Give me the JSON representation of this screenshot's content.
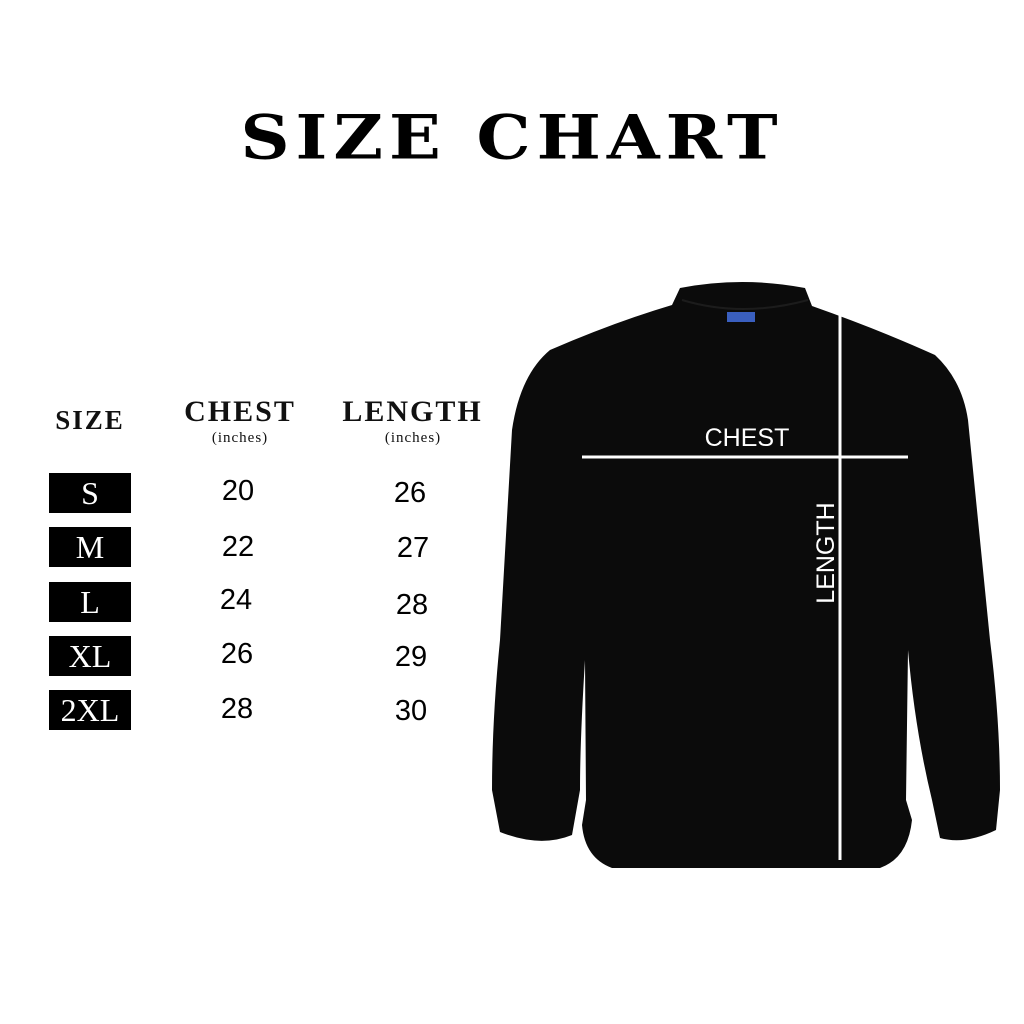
{
  "title": "SIZE CHART",
  "table": {
    "headers": {
      "size": "SIZE",
      "chest": "CHEST",
      "chest_unit": "(inches)",
      "length": "LENGTH",
      "length_unit": "(inches)"
    },
    "rows": [
      {
        "size": "S",
        "chest": "20",
        "length": "26"
      },
      {
        "size": "M",
        "chest": "22",
        "length": "27"
      },
      {
        "size": "L",
        "chest": "24",
        "length": "28"
      },
      {
        "size": "XL",
        "chest": "26",
        "length": "29"
      },
      {
        "size": "2XL",
        "chest": "28",
        "length": "30"
      }
    ]
  },
  "diagram": {
    "chest_label": "CHEST",
    "length_label": "LENGTH",
    "garment_color": "#0b0b0b",
    "line_color": "#ffffff"
  }
}
